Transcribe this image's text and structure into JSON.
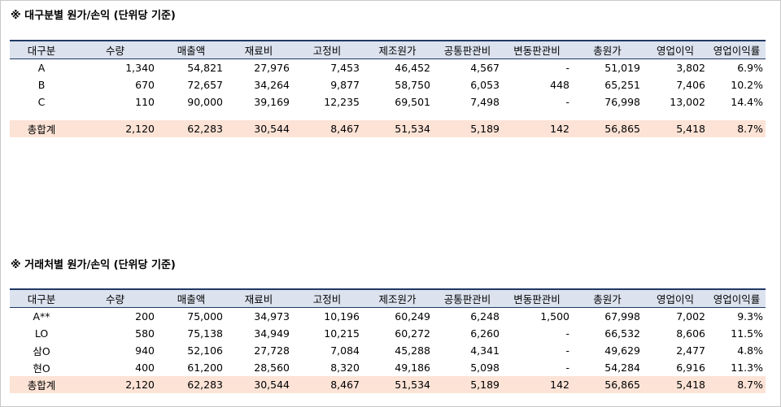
{
  "section1": {
    "title": "※ 대구분별 원가/손익 (단위당 기준)",
    "headers": [
      "대구분",
      "수량",
      "매출액",
      "재료비",
      "고정비",
      "제조원가",
      "공통판관비",
      "변동판관비",
      "총원가",
      "영업이익",
      "영업이익률"
    ],
    "rows": [
      [
        "A",
        "1,340",
        "54,821",
        "27,976",
        "7,453",
        "46,452",
        "4,567",
        "-",
        "51,019",
        "3,802",
        "6.9%"
      ],
      [
        "B",
        "670",
        "72,657",
        "34,264",
        "9,877",
        "58,750",
        "6,053",
        "448",
        "65,251",
        "7,406",
        "10.2%"
      ],
      [
        "C",
        "110",
        "90,000",
        "39,169",
        "12,235",
        "69,501",
        "7,498",
        "-",
        "76,998",
        "13,002",
        "14.4%"
      ]
    ],
    "total": [
      "총합계",
      "2,120",
      "62,283",
      "30,544",
      "8,467",
      "51,534",
      "5,189",
      "142",
      "56,865",
      "5,418",
      "8.7%"
    ]
  },
  "section2": {
    "title": "※ 거래처별 원가/손익 (단위당 기준)",
    "headers": [
      "대구분",
      "수량",
      "매출액",
      "재료비",
      "고정비",
      "제조원가",
      "공통판관비",
      "변동판관비",
      "총원가",
      "영업이익",
      "영업이익률"
    ],
    "rows": [
      [
        "A**",
        "200",
        "75,000",
        "34,973",
        "10,196",
        "60,249",
        "6,248",
        "1,500",
        "67,998",
        "7,002",
        "9.3%"
      ],
      [
        "LO",
        "580",
        "75,138",
        "34,949",
        "10,215",
        "60,272",
        "6,260",
        "-",
        "66,532",
        "8,606",
        "11.5%"
      ],
      [
        "삼O",
        "940",
        "52,106",
        "27,728",
        "7,084",
        "45,288",
        "4,341",
        "-",
        "49,629",
        "2,477",
        "4.8%"
      ],
      [
        "현O",
        "400",
        "61,200",
        "28,560",
        "8,320",
        "49,186",
        "5,098",
        "-",
        "54,284",
        "6,916",
        "11.3%"
      ]
    ],
    "total": [
      "총합계",
      "2,120",
      "62,283",
      "30,544",
      "8,467",
      "51,534",
      "5,189",
      "142",
      "56,865",
      "5,418",
      "8.7%"
    ]
  },
  "colors": {
    "header_bg": "#dce3ef",
    "header_border": "#203864",
    "total_bg": "#fce3d6"
  }
}
